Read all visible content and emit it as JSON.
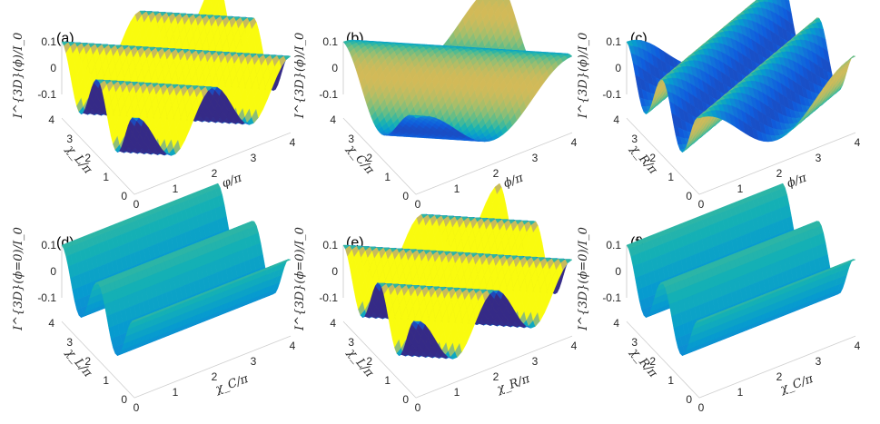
{
  "chart_data": [
    {
      "type": "surface",
      "panel_label": "(a)",
      "zlabel": "I^{3D}(ϕ)/I_0",
      "xlabel": "φ/π",
      "ylabel": "χ_L/π",
      "x_ticks": [
        "0",
        "1",
        "2",
        "3",
        "4"
      ],
      "y_ticks": [
        "0",
        "1",
        "2",
        "3",
        "4"
      ],
      "z_ticks": [
        "0.1",
        "0",
        "-0.1"
      ],
      "xlim": [
        0,
        4
      ],
      "ylim": [
        0,
        4
      ],
      "zlim": [
        -0.1,
        0.1
      ],
      "surface": {
        "x_freq": 1,
        "y_freq": 1
      }
    },
    {
      "type": "surface",
      "panel_label": "(b)",
      "zlabel": "I^{3D}(ϕ)/I_0",
      "xlabel": "ϕ/π",
      "ylabel": "χ_C/π",
      "x_ticks": [
        "0",
        "1",
        "2",
        "3",
        "4"
      ],
      "y_ticks": [
        "0",
        "1",
        "2",
        "3",
        "4"
      ],
      "z_ticks": [
        "0.1",
        "0",
        "-0.1"
      ],
      "xlim": [
        0,
        4
      ],
      "ylim": [
        0,
        4
      ],
      "zlim": [
        -0.1,
        0.1
      ],
      "surface": {
        "x_freq": 0.5,
        "y_freq": 0.5
      }
    },
    {
      "type": "surface",
      "panel_label": "(c)",
      "zlabel": "I^{3D}(ϕ)/I_0",
      "xlabel": "ϕ/π",
      "ylabel": "χ_R/π",
      "x_ticks": [
        "0",
        "1",
        "2",
        "3",
        "4"
      ],
      "y_ticks": [
        "0",
        "1",
        "2",
        "3",
        "4"
      ],
      "z_ticks": [
        "0.1",
        "0",
        "-0.1"
      ],
      "xlim": [
        0,
        4
      ],
      "ylim": [
        0,
        4
      ],
      "zlim": [
        -0.1,
        0.1
      ],
      "surface": {
        "x_freq": 0.5,
        "y_freq": -1
      }
    },
    {
      "type": "surface",
      "panel_label": "(d)",
      "zlabel": "I^{3D}(ϕ=0)/I_0",
      "xlabel": "χ_C/π",
      "ylabel": "χ_L/π",
      "x_ticks": [
        "0",
        "1",
        "2",
        "3",
        "4"
      ],
      "y_ticks": [
        "0",
        "1",
        "2",
        "3",
        "4"
      ],
      "z_ticks": [
        "0.1",
        "0",
        "-0.1"
      ],
      "xlim": [
        0,
        4
      ],
      "ylim": [
        0,
        4
      ],
      "zlim": [
        -0.1,
        0.1
      ],
      "surface": {
        "x_freq": 0,
        "y_freq": 1
      }
    },
    {
      "type": "surface",
      "panel_label": "(e)",
      "zlabel": "I^{3D}(ϕ=0)/I_0",
      "xlabel": "χ_R/π",
      "ylabel": "χ_L/π",
      "x_ticks": [
        "0",
        "1",
        "2",
        "3",
        "4"
      ],
      "y_ticks": [
        "0",
        "1",
        "2",
        "3",
        "4"
      ],
      "z_ticks": [
        "0.1",
        "0",
        "-0.1"
      ],
      "xlim": [
        0,
        4
      ],
      "ylim": [
        0,
        4
      ],
      "zlim": [
        -0.1,
        0.1
      ],
      "surface": {
        "x_freq": 1,
        "y_freq": 1
      }
    },
    {
      "type": "surface",
      "panel_label": "(f)",
      "zlabel": "I^{3D}(ϕ=0)/I_0",
      "xlabel": "χ_C/π",
      "ylabel": "χ_R/π",
      "x_ticks": [
        "0",
        "1",
        "2",
        "3",
        "4"
      ],
      "y_ticks": [
        "0",
        "1",
        "2",
        "3",
        "4"
      ],
      "z_ticks": [
        "0.1",
        "0",
        "-0.1"
      ],
      "xlim": [
        0,
        4
      ],
      "ylim": [
        0,
        4
      ],
      "zlim": [
        -0.1,
        0.1
      ],
      "surface": {
        "x_freq": 0,
        "y_freq": 1
      }
    }
  ]
}
